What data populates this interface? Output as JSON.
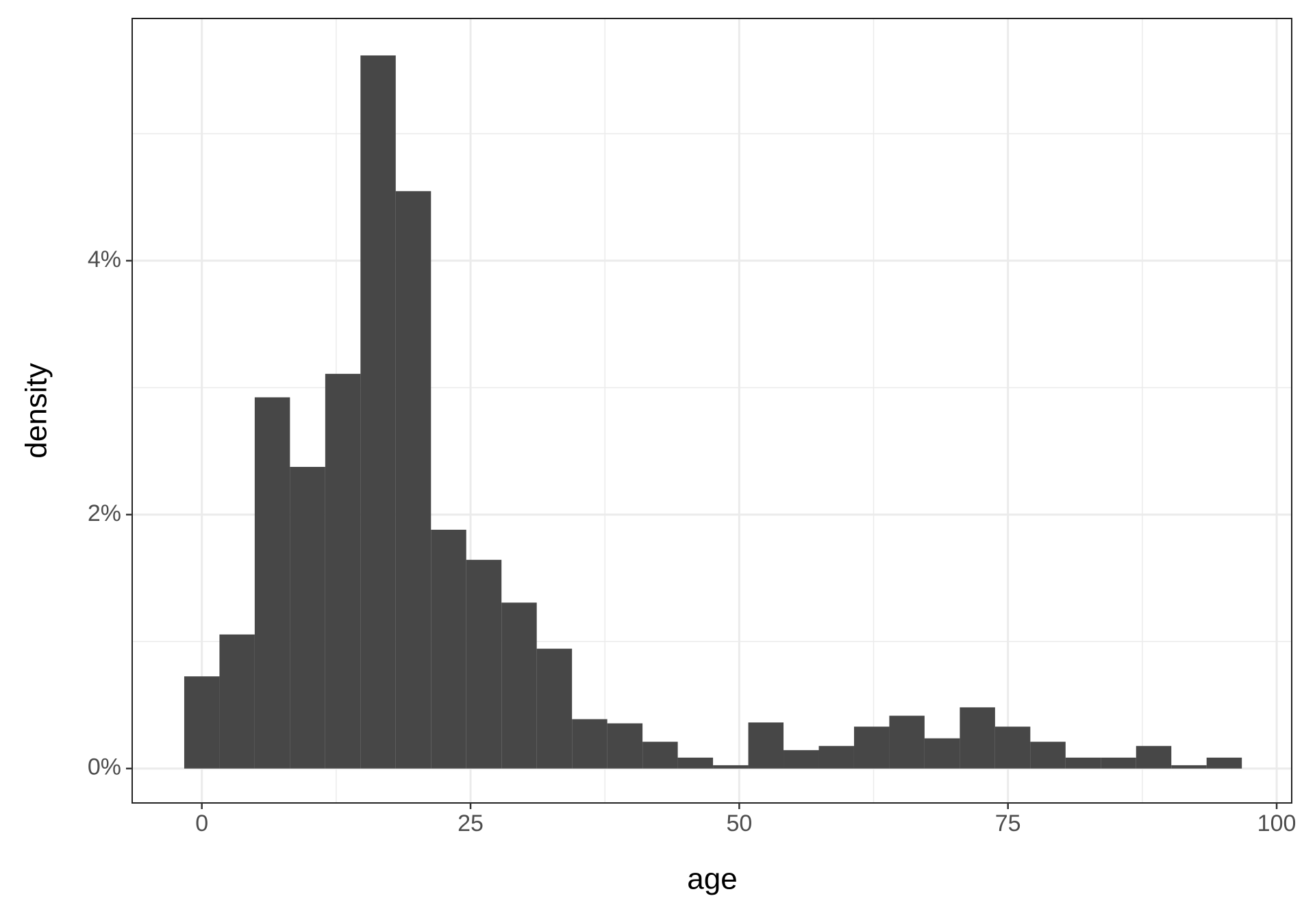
{
  "chart_data": {
    "type": "histogram",
    "x_label": "age",
    "y_label": "density",
    "bins": [
      -1.64,
      1.64,
      4.92,
      8.2,
      11.48,
      14.76,
      18.04,
      21.32,
      24.6,
      27.88,
      31.16,
      34.44,
      37.72,
      41.0,
      44.28,
      47.56,
      50.84,
      54.12,
      57.4,
      60.68,
      63.96,
      67.24,
      70.52,
      73.8,
      77.08,
      80.36,
      83.64,
      86.92,
      90.2,
      93.48,
      96.76
    ],
    "values": [
      0.726,
      1.056,
      2.924,
      2.376,
      3.109,
      5.617,
      4.548,
      1.881,
      1.644,
      1.307,
      0.944,
      0.389,
      0.356,
      0.211,
      0.086,
      0.026,
      0.363,
      0.145,
      0.178,
      0.33,
      0.416,
      0.238,
      0.482,
      0.33,
      0.211,
      0.086,
      0.086,
      0.178,
      0.026,
      0.086
    ],
    "color": "#474747",
    "xlim": [
      -6.48,
      101.4
    ],
    "xticks": [
      0,
      25,
      50,
      75,
      100
    ],
    "ylim": [
      -0.271,
      5.908
    ],
    "yticks": [
      {
        "value": 0,
        "label": "0%"
      },
      {
        "value": 2,
        "label": "2%"
      },
      {
        "value": 4,
        "label": "4%"
      }
    ],
    "grid": true
  }
}
